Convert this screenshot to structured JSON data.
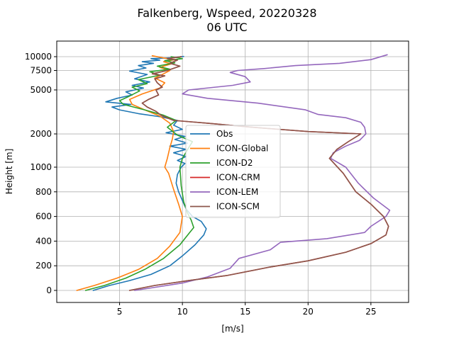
{
  "chart_data": {
    "type": "line",
    "title": "Falkenberg, Wspeed, 20220328",
    "subtitle": "06 UTC",
    "xlabel": "[m/s]",
    "ylabel": "Height [m]",
    "xlim": [
      0,
      28
    ],
    "xticks": [
      5,
      10,
      15,
      20,
      25
    ],
    "yscale": "piecewise",
    "yticks": [
      {
        "value": 0,
        "label": "0"
      },
      {
        "value": 200,
        "label": "200"
      },
      {
        "value": 400,
        "label": "400"
      },
      {
        "value": 600,
        "label": "600"
      },
      {
        "value": 800,
        "label": "800"
      },
      {
        "value": 1000,
        "label": "1000"
      },
      {
        "value": 2000,
        "label": "2000"
      },
      {
        "value": 5000,
        "label": "5000"
      },
      {
        "value": 7500,
        "label": "7500"
      },
      {
        "value": 10000,
        "label": "10000"
      }
    ],
    "grid": true,
    "legend_position": "center",
    "series": [
      {
        "name": "Obs",
        "color": "#1f77b4",
        "points": [
          [
            2.9,
            0
          ],
          [
            4.2,
            40
          ],
          [
            5.8,
            80
          ],
          [
            7.5,
            130
          ],
          [
            9.0,
            200
          ],
          [
            10.0,
            280
          ],
          [
            11.0,
            370
          ],
          [
            11.7,
            450
          ],
          [
            11.9,
            500
          ],
          [
            11.5,
            560
          ],
          [
            10.8,
            600
          ],
          [
            10.3,
            660
          ],
          [
            10.0,
            730
          ],
          [
            9.7,
            800
          ],
          [
            9.5,
            870
          ],
          [
            9.6,
            940
          ],
          [
            9.9,
            1000
          ],
          [
            10.2,
            1080
          ],
          [
            9.6,
            1150
          ],
          [
            10.3,
            1250
          ],
          [
            9.3,
            1350
          ],
          [
            10.3,
            1450
          ],
          [
            9.0,
            1550
          ],
          [
            10.4,
            1650
          ],
          [
            9.4,
            1780
          ],
          [
            10.2,
            1900
          ],
          [
            8.7,
            2050
          ],
          [
            10.0,
            2200
          ],
          [
            9.3,
            2400
          ],
          [
            9.6,
            2650
          ],
          [
            8.3,
            2850
          ],
          [
            6.5,
            3050
          ],
          [
            5.0,
            3300
          ],
          [
            4.4,
            3500
          ],
          [
            5.9,
            3700
          ],
          [
            3.9,
            3900
          ],
          [
            4.8,
            4200
          ],
          [
            6.0,
            4500
          ],
          [
            5.5,
            4800
          ],
          [
            6.9,
            5200
          ],
          [
            6.0,
            5500
          ],
          [
            7.4,
            5900
          ],
          [
            6.2,
            6300
          ],
          [
            7.2,
            6900
          ],
          [
            5.8,
            7400
          ],
          [
            7.1,
            7900
          ],
          [
            6.5,
            8300
          ],
          [
            7.7,
            8700
          ],
          [
            6.8,
            9000
          ],
          [
            8.2,
            9300
          ],
          [
            7.5,
            9600
          ],
          [
            9.2,
            9800
          ],
          [
            10.1,
            10050
          ]
        ]
      },
      {
        "name": "ICON-Global",
        "color": "#ff7f0e",
        "points": [
          [
            1.6,
            0
          ],
          [
            3.0,
            40
          ],
          [
            4.8,
            100
          ],
          [
            6.5,
            170
          ],
          [
            8.0,
            260
          ],
          [
            9.0,
            360
          ],
          [
            9.8,
            470
          ],
          [
            10.0,
            600
          ],
          [
            9.7,
            700
          ],
          [
            9.3,
            820
          ],
          [
            8.9,
            950
          ],
          [
            8.6,
            1000
          ],
          [
            8.8,
            1200
          ],
          [
            9.0,
            1500
          ],
          [
            9.2,
            1800
          ],
          [
            9.3,
            2100
          ],
          [
            9.0,
            2500
          ],
          [
            8.2,
            2900
          ],
          [
            7.0,
            3300
          ],
          [
            6.0,
            3700
          ],
          [
            5.8,
            4100
          ],
          [
            6.8,
            4600
          ],
          [
            8.2,
            5200
          ],
          [
            8.6,
            5800
          ],
          [
            7.8,
            6400
          ],
          [
            8.5,
            7000
          ],
          [
            9.0,
            7500
          ],
          [
            8.2,
            8000
          ],
          [
            9.1,
            8600
          ],
          [
            8.5,
            9000
          ],
          [
            9.4,
            9400
          ],
          [
            8.6,
            9700
          ],
          [
            7.6,
            10200
          ]
        ]
      },
      {
        "name": "ICON-D2",
        "color": "#2ca02c",
        "points": [
          [
            2.3,
            0
          ],
          [
            3.8,
            40
          ],
          [
            5.5,
            100
          ],
          [
            7.0,
            170
          ],
          [
            8.5,
            260
          ],
          [
            9.8,
            370
          ],
          [
            10.5,
            460
          ],
          [
            10.9,
            510
          ],
          [
            10.7,
            570
          ],
          [
            10.4,
            630
          ],
          [
            10.1,
            720
          ],
          [
            9.9,
            850
          ],
          [
            9.8,
            1000
          ],
          [
            10.0,
            1200
          ],
          [
            10.5,
            1500
          ],
          [
            10.8,
            1700
          ],
          [
            9.6,
            1950
          ],
          [
            8.8,
            2300
          ],
          [
            9.5,
            2650
          ],
          [
            8.5,
            2950
          ],
          [
            7.0,
            3300
          ],
          [
            5.3,
            3700
          ],
          [
            5.0,
            4000
          ],
          [
            5.8,
            4400
          ],
          [
            6.6,
            4900
          ],
          [
            6.0,
            5300
          ],
          [
            7.2,
            5700
          ],
          [
            6.5,
            6200
          ],
          [
            8.2,
            6800
          ],
          [
            7.4,
            7300
          ],
          [
            9.0,
            7700
          ],
          [
            8.0,
            8200
          ],
          [
            9.4,
            8800
          ],
          [
            8.6,
            9200
          ],
          [
            10.0,
            9600
          ],
          [
            9.1,
            10000
          ]
        ]
      },
      {
        "name": "ICON-CRM",
        "color": "#d62728",
        "points": [
          [
            5.8,
            0
          ],
          [
            7.8,
            40
          ],
          [
            10.5,
            80
          ],
          [
            13.5,
            120
          ],
          [
            17.0,
            190
          ],
          [
            20.0,
            240
          ],
          [
            23.0,
            310
          ],
          [
            25.0,
            380
          ],
          [
            26.2,
            450
          ],
          [
            26.4,
            520
          ],
          [
            26.0,
            600
          ],
          [
            25.0,
            700
          ],
          [
            23.8,
            800
          ],
          [
            22.8,
            950
          ],
          [
            21.7,
            1200
          ],
          [
            22.3,
            1450
          ],
          [
            23.2,
            1700
          ],
          [
            24.2,
            2000
          ],
          [
            20.0,
            2100
          ],
          [
            15.5,
            2300
          ],
          [
            12.0,
            2500
          ],
          [
            9.3,
            2650
          ],
          [
            8.3,
            2950
          ],
          [
            7.9,
            3200
          ],
          [
            7.2,
            3500
          ],
          [
            6.8,
            3800
          ],
          [
            7.3,
            4100
          ],
          [
            8.1,
            4500
          ],
          [
            7.9,
            5000
          ],
          [
            8.4,
            5300
          ],
          [
            8.0,
            5800
          ],
          [
            7.8,
            6300
          ],
          [
            8.6,
            6700
          ],
          [
            7.6,
            7000
          ],
          [
            8.8,
            7500
          ],
          [
            9.8,
            8200
          ],
          [
            9.0,
            8700
          ],
          [
            9.6,
            9300
          ],
          [
            8.8,
            9600
          ],
          [
            9.9,
            10000
          ]
        ]
      },
      {
        "name": "ICON-LEM",
        "color": "#9467bd",
        "points": [
          [
            6.2,
            0
          ],
          [
            7.5,
            20
          ],
          [
            10.0,
            60
          ],
          [
            12.0,
            110
          ],
          [
            13.8,
            180
          ],
          [
            14.5,
            260
          ],
          [
            17.0,
            330
          ],
          [
            17.8,
            390
          ],
          [
            21.5,
            420
          ],
          [
            24.5,
            470
          ],
          [
            25.0,
            520
          ],
          [
            26.2,
            600
          ],
          [
            26.5,
            650
          ],
          [
            25.2,
            750
          ],
          [
            24.0,
            870
          ],
          [
            23.0,
            1000
          ],
          [
            21.8,
            1200
          ],
          [
            22.0,
            1350
          ],
          [
            23.0,
            1550
          ],
          [
            24.1,
            1750
          ],
          [
            24.6,
            2000
          ],
          [
            24.5,
            2300
          ],
          [
            24.2,
            2550
          ],
          [
            23.0,
            2800
          ],
          [
            20.8,
            3000
          ],
          [
            19.8,
            3300
          ],
          [
            16.0,
            3800
          ],
          [
            12.0,
            4200
          ],
          [
            10.0,
            4600
          ],
          [
            10.5,
            5000
          ],
          [
            14.0,
            5500
          ],
          [
            15.4,
            5900
          ],
          [
            15.0,
            6600
          ],
          [
            13.8,
            7200
          ],
          [
            14.4,
            7500
          ],
          [
            16.5,
            7800
          ],
          [
            19.0,
            8300
          ],
          [
            22.5,
            8700
          ],
          [
            25.0,
            9400
          ],
          [
            26.3,
            10400
          ]
        ]
      },
      {
        "name": "ICON-SCM",
        "color": "#8c564b",
        "points": [
          [
            5.8,
            0
          ],
          [
            7.8,
            40
          ],
          [
            10.5,
            80
          ],
          [
            13.5,
            120
          ],
          [
            17.0,
            190
          ],
          [
            20.0,
            240
          ],
          [
            23.0,
            310
          ],
          [
            25.0,
            380
          ],
          [
            26.2,
            450
          ],
          [
            26.4,
            520
          ],
          [
            26.0,
            600
          ],
          [
            25.0,
            700
          ],
          [
            23.8,
            800
          ],
          [
            22.8,
            950
          ],
          [
            21.7,
            1200
          ],
          [
            22.3,
            1450
          ],
          [
            23.2,
            1700
          ],
          [
            24.2,
            2000
          ],
          [
            20.0,
            2100
          ],
          [
            15.5,
            2300
          ],
          [
            12.0,
            2500
          ],
          [
            9.3,
            2650
          ],
          [
            8.3,
            2950
          ],
          [
            7.9,
            3200
          ],
          [
            7.2,
            3500
          ],
          [
            6.8,
            3800
          ],
          [
            7.3,
            4100
          ],
          [
            8.1,
            4500
          ],
          [
            7.9,
            5000
          ],
          [
            8.4,
            5300
          ],
          [
            8.0,
            5800
          ],
          [
            7.8,
            6300
          ],
          [
            8.6,
            6700
          ],
          [
            7.6,
            7000
          ],
          [
            8.8,
            7500
          ],
          [
            9.8,
            8200
          ],
          [
            9.0,
            8700
          ],
          [
            9.6,
            9300
          ],
          [
            8.8,
            9600
          ],
          [
            9.9,
            10000
          ]
        ]
      }
    ]
  }
}
